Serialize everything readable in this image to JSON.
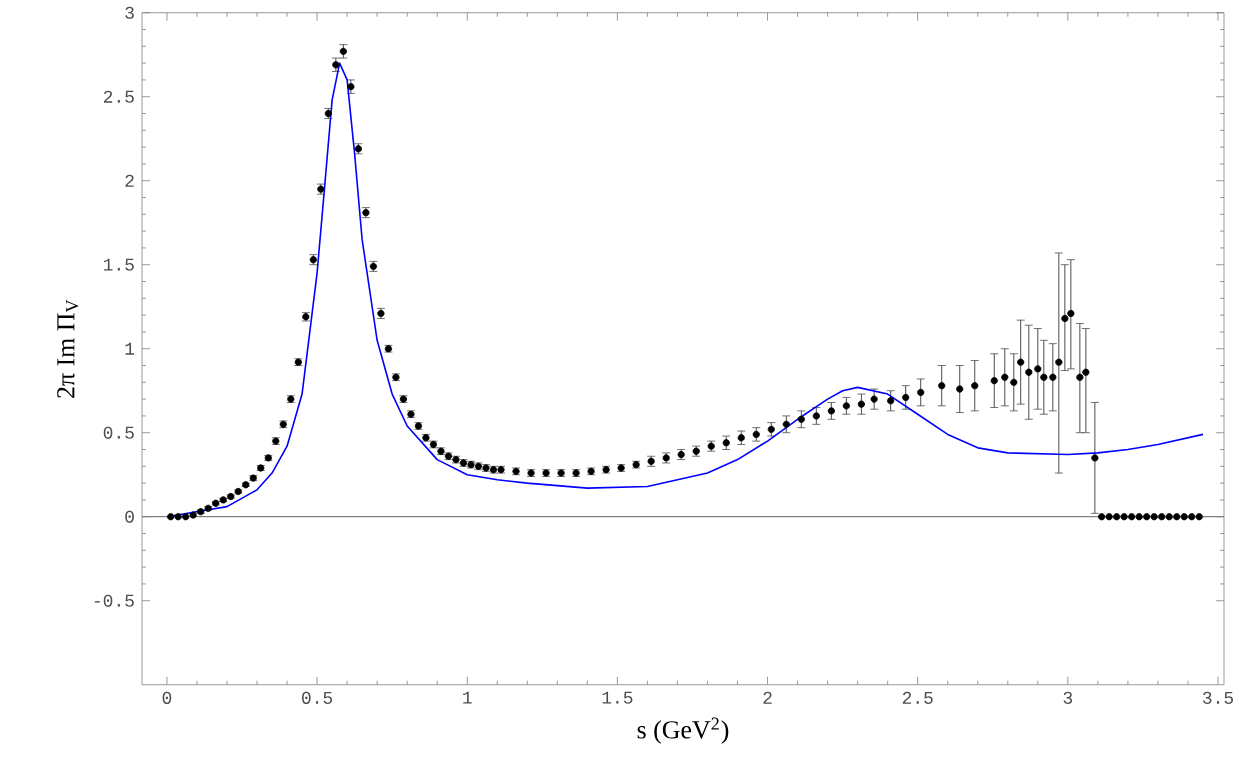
{
  "chart_data": {
    "type": "scatter",
    "xlabel": "s (GeV$^{2}$)",
    "ylabel": "2π Im Π$_{V}$",
    "xlim": [
      -0.083,
      3.52
    ],
    "ylim": [
      -1,
      3
    ],
    "xticks": [
      0,
      0.5,
      1,
      1.5,
      2,
      2.5,
      3,
      3.5
    ],
    "yticks": [
      -0.5,
      0,
      0.5,
      1,
      1.5,
      2,
      2.5,
      3
    ],
    "grid": false,
    "ref_lines": [
      {
        "axis": "y",
        "value": 0,
        "color": "#808080"
      }
    ],
    "series": [
      {
        "color": "#000000",
        "marker": "circle",
        "x": [
          0.0125,
          0.0375,
          0.0625,
          0.0875,
          0.1125,
          0.1375,
          0.1625,
          0.1875,
          0.2125,
          0.2375,
          0.2625,
          0.2875,
          0.3125,
          0.3375,
          0.3625,
          0.3875,
          0.4125,
          0.4375,
          0.4625,
          0.4875,
          0.5125,
          0.5375,
          0.5625,
          0.5875,
          0.6125,
          0.6375,
          0.6625,
          0.6875,
          0.7125,
          0.7375,
          0.7625,
          0.7875,
          0.8125,
          0.8375,
          0.8625,
          0.8875,
          0.9125,
          0.9375,
          0.9625,
          0.9875,
          1.0125,
          1.0375,
          1.0625,
          1.0875,
          1.1125,
          1.1625,
          1.2125,
          1.2625,
          1.3125,
          1.3625,
          1.4125,
          1.4625,
          1.5125,
          1.5625,
          1.6125,
          1.6625,
          1.7125,
          1.7625,
          1.8125,
          1.8625,
          1.9125,
          1.9625,
          2.0125,
          2.0625,
          2.1125,
          2.1625,
          2.2125,
          2.2625,
          2.3125,
          2.355,
          2.41,
          2.46,
          2.51,
          2.58,
          2.64,
          2.69,
          2.755,
          2.79,
          2.82,
          2.843,
          2.87,
          2.9,
          2.92,
          2.95,
          2.97,
          2.99,
          3.01,
          3.04,
          3.06,
          3.09,
          3.1125,
          3.1375,
          3.1625,
          3.1875,
          3.2125,
          3.2375,
          3.2625,
          3.2875,
          3.3125,
          3.3375,
          3.3625,
          3.3875,
          3.4125,
          3.4375
        ],
        "values": [
          0,
          0,
          0,
          0.01,
          0.03,
          0.05,
          0.08,
          0.1,
          0.12,
          0.15,
          0.19,
          0.23,
          0.29,
          0.35,
          0.45,
          0.55,
          0.7,
          0.92,
          1.19,
          1.53,
          1.95,
          2.4,
          2.69,
          2.77,
          2.56,
          2.19,
          1.81,
          1.49,
          1.21,
          1.0,
          0.83,
          0.7,
          0.61,
          0.54,
          0.47,
          0.43,
          0.39,
          0.36,
          0.34,
          0.32,
          0.31,
          0.3,
          0.29,
          0.28,
          0.28,
          0.27,
          0.26,
          0.26,
          0.26,
          0.26,
          0.27,
          0.28,
          0.29,
          0.31,
          0.33,
          0.35,
          0.37,
          0.39,
          0.42,
          0.44,
          0.47,
          0.49,
          0.52,
          0.55,
          0.58,
          0.6,
          0.63,
          0.66,
          0.67,
          0.7,
          0.69,
          0.71,
          0.74,
          0.78,
          0.76,
          0.78,
          0.81,
          0.83,
          0.8,
          0.92,
          0.86,
          0.88,
          0.83,
          0.83,
          0.92,
          1.18,
          1.21,
          0.83,
          0.86,
          0.35,
          0,
          0,
          0,
          0,
          0,
          0,
          0,
          0,
          0,
          0,
          0,
          0,
          0,
          0
        ],
        "errors": [
          null,
          null,
          null,
          null,
          0.01,
          0.01,
          0.01,
          0.01,
          0.01,
          0.01,
          0.01,
          0.015,
          0.015,
          0.015,
          0.02,
          0.02,
          0.02,
          0.02,
          0.025,
          0.03,
          0.03,
          0.03,
          0.04,
          0.04,
          0.04,
          0.03,
          0.03,
          0.03,
          0.03,
          0.02,
          0.02,
          0.02,
          0.02,
          0.02,
          0.02,
          0.02,
          0.02,
          0.02,
          0.02,
          0.02,
          0.02,
          0.02,
          0.02,
          0.02,
          0.02,
          0.02,
          0.02,
          0.02,
          0.02,
          0.02,
          0.02,
          0.02,
          0.02,
          0.02,
          0.03,
          0.03,
          0.03,
          0.03,
          0.03,
          0.04,
          0.04,
          0.04,
          0.04,
          0.05,
          0.05,
          0.05,
          0.05,
          0.05,
          0.06,
          0.06,
          0.06,
          0.07,
          0.08,
          0.12,
          0.14,
          0.15,
          0.16,
          0.17,
          0.17,
          0.25,
          0.28,
          0.24,
          0.22,
          0.2,
          [
            0.26,
            1.57
          ],
          [
            0.87,
            1.5
          ],
          [
            0.88,
            1.53
          ],
          [
            0.5,
            1.15
          ],
          [
            0.5,
            1.12
          ],
          [
            0.02,
            0.68
          ],
          null,
          null,
          null,
          null,
          null,
          null,
          null,
          null,
          null,
          null,
          null,
          null,
          null,
          null
        ]
      },
      {
        "type": "line",
        "color": "#0000ff",
        "marker": "none",
        "line_style": "solid",
        "x": [
          0.0,
          0.1,
          0.2,
          0.3,
          0.35,
          0.4,
          0.45,
          0.5,
          0.525,
          0.55,
          0.575,
          0.6,
          0.625,
          0.65,
          0.7,
          0.75,
          0.8,
          0.9,
          1.0,
          1.1,
          1.2,
          1.4,
          1.6,
          1.8,
          1.9,
          2.0,
          2.1,
          2.2,
          2.25,
          2.3,
          2.4,
          2.5,
          2.6,
          2.7,
          2.8,
          3.0,
          3.1,
          3.2,
          3.3,
          3.45
        ],
        "values": [
          0,
          0.03,
          0.06,
          0.16,
          0.26,
          0.42,
          0.73,
          1.45,
          1.96,
          2.48,
          2.7,
          2.6,
          2.16,
          1.65,
          1.05,
          0.73,
          0.54,
          0.34,
          0.25,
          0.22,
          0.2,
          0.17,
          0.18,
          0.26,
          0.34,
          0.45,
          0.58,
          0.7,
          0.75,
          0.77,
          0.73,
          0.61,
          0.49,
          0.41,
          0.38,
          0.37,
          0.38,
          0.4,
          0.43,
          0.49
        ]
      }
    ]
  }
}
